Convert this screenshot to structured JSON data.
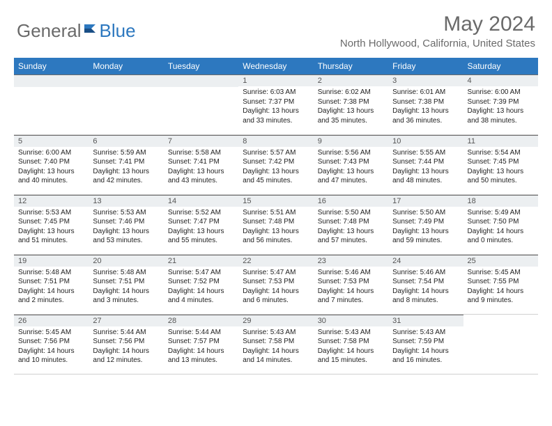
{
  "brand": {
    "first": "General",
    "second": "Blue"
  },
  "header": {
    "month": "May 2024",
    "location": "North Hollywood, California, United States"
  },
  "weekdays": [
    "Sunday",
    "Monday",
    "Tuesday",
    "Wednesday",
    "Thursday",
    "Friday",
    "Saturday"
  ],
  "colors": {
    "header_bg": "#2d78bf",
    "header_text": "#ffffff",
    "page_bg": "#ffffff",
    "daynum_bg": "#eceff1",
    "grey_text": "#6a6a6a"
  },
  "weeks": [
    [
      null,
      null,
      null,
      {
        "n": "1",
        "sr": "6:03 AM",
        "ss": "7:37 PM",
        "dl": "13 hours and 33 minutes."
      },
      {
        "n": "2",
        "sr": "6:02 AM",
        "ss": "7:38 PM",
        "dl": "13 hours and 35 minutes."
      },
      {
        "n": "3",
        "sr": "6:01 AM",
        "ss": "7:38 PM",
        "dl": "13 hours and 36 minutes."
      },
      {
        "n": "4",
        "sr": "6:00 AM",
        "ss": "7:39 PM",
        "dl": "13 hours and 38 minutes."
      }
    ],
    [
      {
        "n": "5",
        "sr": "6:00 AM",
        "ss": "7:40 PM",
        "dl": "13 hours and 40 minutes."
      },
      {
        "n": "6",
        "sr": "5:59 AM",
        "ss": "7:41 PM",
        "dl": "13 hours and 42 minutes."
      },
      {
        "n": "7",
        "sr": "5:58 AM",
        "ss": "7:41 PM",
        "dl": "13 hours and 43 minutes."
      },
      {
        "n": "8",
        "sr": "5:57 AM",
        "ss": "7:42 PM",
        "dl": "13 hours and 45 minutes."
      },
      {
        "n": "9",
        "sr": "5:56 AM",
        "ss": "7:43 PM",
        "dl": "13 hours and 47 minutes."
      },
      {
        "n": "10",
        "sr": "5:55 AM",
        "ss": "7:44 PM",
        "dl": "13 hours and 48 minutes."
      },
      {
        "n": "11",
        "sr": "5:54 AM",
        "ss": "7:45 PM",
        "dl": "13 hours and 50 minutes."
      }
    ],
    [
      {
        "n": "12",
        "sr": "5:53 AM",
        "ss": "7:45 PM",
        "dl": "13 hours and 51 minutes."
      },
      {
        "n": "13",
        "sr": "5:53 AM",
        "ss": "7:46 PM",
        "dl": "13 hours and 53 minutes."
      },
      {
        "n": "14",
        "sr": "5:52 AM",
        "ss": "7:47 PM",
        "dl": "13 hours and 55 minutes."
      },
      {
        "n": "15",
        "sr": "5:51 AM",
        "ss": "7:48 PM",
        "dl": "13 hours and 56 minutes."
      },
      {
        "n": "16",
        "sr": "5:50 AM",
        "ss": "7:48 PM",
        "dl": "13 hours and 57 minutes."
      },
      {
        "n": "17",
        "sr": "5:50 AM",
        "ss": "7:49 PM",
        "dl": "13 hours and 59 minutes."
      },
      {
        "n": "18",
        "sr": "5:49 AM",
        "ss": "7:50 PM",
        "dl": "14 hours and 0 minutes."
      }
    ],
    [
      {
        "n": "19",
        "sr": "5:48 AM",
        "ss": "7:51 PM",
        "dl": "14 hours and 2 minutes."
      },
      {
        "n": "20",
        "sr": "5:48 AM",
        "ss": "7:51 PM",
        "dl": "14 hours and 3 minutes."
      },
      {
        "n": "21",
        "sr": "5:47 AM",
        "ss": "7:52 PM",
        "dl": "14 hours and 4 minutes."
      },
      {
        "n": "22",
        "sr": "5:47 AM",
        "ss": "7:53 PM",
        "dl": "14 hours and 6 minutes."
      },
      {
        "n": "23",
        "sr": "5:46 AM",
        "ss": "7:53 PM",
        "dl": "14 hours and 7 minutes."
      },
      {
        "n": "24",
        "sr": "5:46 AM",
        "ss": "7:54 PM",
        "dl": "14 hours and 8 minutes."
      },
      {
        "n": "25",
        "sr": "5:45 AM",
        "ss": "7:55 PM",
        "dl": "14 hours and 9 minutes."
      }
    ],
    [
      {
        "n": "26",
        "sr": "5:45 AM",
        "ss": "7:56 PM",
        "dl": "14 hours and 10 minutes."
      },
      {
        "n": "27",
        "sr": "5:44 AM",
        "ss": "7:56 PM",
        "dl": "14 hours and 12 minutes."
      },
      {
        "n": "28",
        "sr": "5:44 AM",
        "ss": "7:57 PM",
        "dl": "14 hours and 13 minutes."
      },
      {
        "n": "29",
        "sr": "5:43 AM",
        "ss": "7:58 PM",
        "dl": "14 hours and 14 minutes."
      },
      {
        "n": "30",
        "sr": "5:43 AM",
        "ss": "7:58 PM",
        "dl": "14 hours and 15 minutes."
      },
      {
        "n": "31",
        "sr": "5:43 AM",
        "ss": "7:59 PM",
        "dl": "14 hours and 16 minutes."
      },
      null
    ]
  ],
  "labels": {
    "sunrise": "Sunrise:",
    "sunset": "Sunset:",
    "daylight": "Daylight:"
  }
}
